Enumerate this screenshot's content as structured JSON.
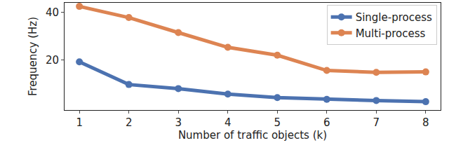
{
  "chart_data": {
    "type": "line",
    "x_label": "Number of traffic objects (k)",
    "y_label": "Frequency (Hz)",
    "x": [
      1,
      2,
      3,
      4,
      5,
      6,
      7,
      8
    ],
    "series": [
      {
        "name": "Single-process",
        "color": "#4c72b0",
        "marker": "circle",
        "values": [
          19.2,
          9.7,
          8.0,
          5.7,
          4.2,
          3.5,
          3.0,
          2.5
        ]
      },
      {
        "name": "Multi-process",
        "color": "#dd8452",
        "marker": "circle",
        "values": [
          42.5,
          37.8,
          31.5,
          25.3,
          22.0,
          15.6,
          14.8,
          15.0
        ]
      }
    ],
    "xlim": [
      0.7,
      8.3
    ],
    "xticks": [
      1,
      2,
      3,
      4,
      5,
      6,
      7,
      8
    ],
    "ylim": [
      -1,
      44
    ],
    "yticks": [
      20,
      40
    ],
    "grid": false,
    "legend": "top-right"
  }
}
